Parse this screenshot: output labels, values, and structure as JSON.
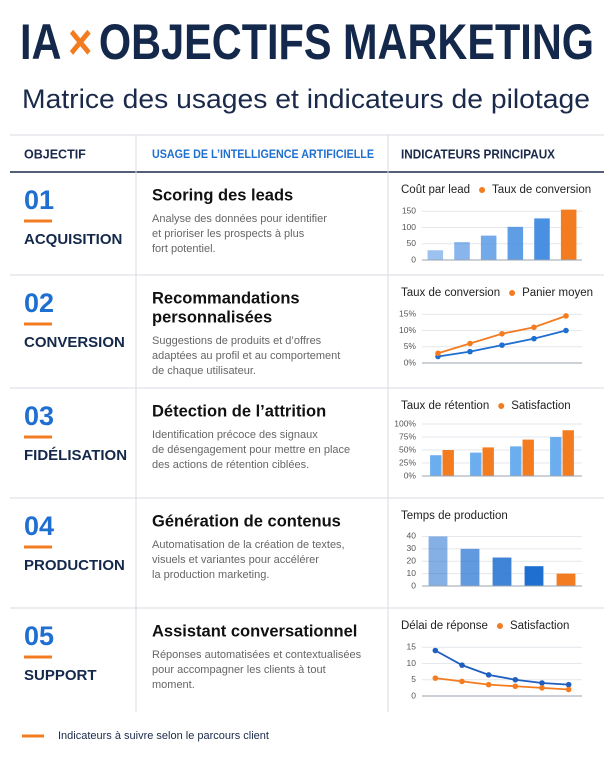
{
  "header": {
    "title_left": "IA",
    "title_symbol": "×",
    "title_right": "OBJECTIFS MARKETING",
    "subtitle": "Matrice des usages et indicateurs de pilotage"
  },
  "table": {
    "columns": [
      "OBJECTIF",
      "USAGE DE L’INTELLIGENCE ARTIFICIELLE",
      "INDICATEURS PRINCIPAUX"
    ],
    "rows": [
      {
        "number": "01",
        "objective": "ACQUISITION",
        "usage_title": [
          "Scoring des leads"
        ],
        "usage_text": [
          "Analyse des données pour identifier",
          "et prioriser les prospects à plus",
          "fort potentiel."
        ]
      },
      {
        "number": "02",
        "objective": "CONVERSION",
        "usage_title": [
          "Recommandations",
          "personnalisées"
        ],
        "usage_text": [
          "Suggestions de produits et d’offres",
          "adaptées au profil et au comportement",
          "de chaque utilisateur."
        ]
      },
      {
        "number": "03",
        "objective": "FIDÉLISATION",
        "usage_title": [
          "Détection de l’attrition"
        ],
        "usage_text": [
          "Identification précoce des signaux",
          "de désengagement pour mettre en place",
          "des actions de rétention ciblées."
        ]
      },
      {
        "number": "04",
        "objective": "PRODUCTION",
        "usage_title": [
          "Génération de contenus"
        ],
        "usage_text": [
          "Automatisation de la création de textes,",
          "visuels et variantes pour accélérer",
          "la production marketing."
        ]
      },
      {
        "number": "05",
        "objective": "SUPPORT",
        "usage_title": [
          "Assistant conversationnel"
        ],
        "usage_text": [
          "Réponses automatisées et contextualisées",
          "pour accompagner les clients à tout",
          "moment."
        ]
      }
    ]
  },
  "footer": {
    "note": "Indicateurs à suivre selon le parcours client"
  },
  "chart_data": [
    {
      "type": "bar",
      "categories": [
        null,
        null,
        null,
        null,
        null,
        null
      ],
      "series": [
        {
          "name": "Coût par lead",
          "color": "#4a90e2",
          "values": [
            30,
            55,
            75,
            102,
            128,
            null
          ]
        },
        {
          "name": "Taux de conversion",
          "color": "#f47c20",
          "values": [
            null,
            null,
            null,
            null,
            null,
            155
          ]
        }
      ],
      "ylim": [
        0,
        160
      ],
      "yticks": [
        0,
        50,
        100,
        150
      ],
      "grid": true
    },
    {
      "type": "line",
      "categories": [
        null,
        null,
        null,
        null,
        null
      ],
      "series": [
        {
          "name": "Taux de conversion",
          "color": "#1f6fd1",
          "values": [
            2,
            3.5,
            5.5,
            7.5,
            10
          ]
        },
        {
          "name": "Panier moyen",
          "color": "#f47c20",
          "values": [
            3,
            6,
            9,
            11,
            14.5
          ]
        }
      ],
      "ylim": [
        0,
        16
      ],
      "yticks": [
        {
          "value": 0,
          "label": "0%"
        },
        {
          "value": 5,
          "label": "5%"
        },
        {
          "value": 10,
          "label": "10%"
        },
        {
          "value": 15,
          "label": "15%"
        }
      ],
      "grid": true
    },
    {
      "type": "bar",
      "categories": [
        null,
        null,
        null,
        null
      ],
      "series": [
        {
          "name": "Taux de rétention",
          "color": "#6aaef0",
          "values": [
            40,
            45,
            57,
            75
          ]
        },
        {
          "name": "Satisfaction",
          "color": "#f47c20",
          "values": [
            50,
            55,
            70,
            88
          ]
        }
      ],
      "ylim": [
        0,
        100
      ],
      "yticks": [
        {
          "value": 0,
          "label": "0%"
        },
        {
          "value": 25,
          "label": "25%"
        },
        {
          "value": 50,
          "label": "50%"
        },
        {
          "value": 75,
          "label": "75%"
        },
        {
          "value": 100,
          "label": "100%"
        }
      ],
      "grid": true
    },
    {
      "type": "bar",
      "categories": [
        null,
        null,
        null,
        null,
        null
      ],
      "series": [
        {
          "name": "Temps de production",
          "color": "#1f6fd1",
          "values": [
            40,
            30,
            23,
            16,
            null
          ]
        },
        {
          "color": "#f47c20",
          "values": [
            null,
            null,
            null,
            null,
            10
          ]
        }
      ],
      "ylim": [
        0,
        42
      ],
      "yticks": [
        0,
        10,
        20,
        30,
        40
      ],
      "grid": true
    },
    {
      "type": "line",
      "categories": [
        null,
        null,
        null,
        null,
        null,
        null
      ],
      "series": [
        {
          "name": "Délai de réponse",
          "color": "#1f5fbf",
          "values": [
            14,
            9.5,
            6.5,
            5,
            4,
            3.5
          ]
        },
        {
          "name": "Satisfaction",
          "color": "#f47c20",
          "values": [
            5.5,
            4.5,
            3.5,
            3,
            2.5,
            2
          ]
        }
      ],
      "ylim": [
        0,
        16
      ],
      "yticks": [
        0,
        5,
        10,
        15
      ],
      "grid": true
    }
  ]
}
